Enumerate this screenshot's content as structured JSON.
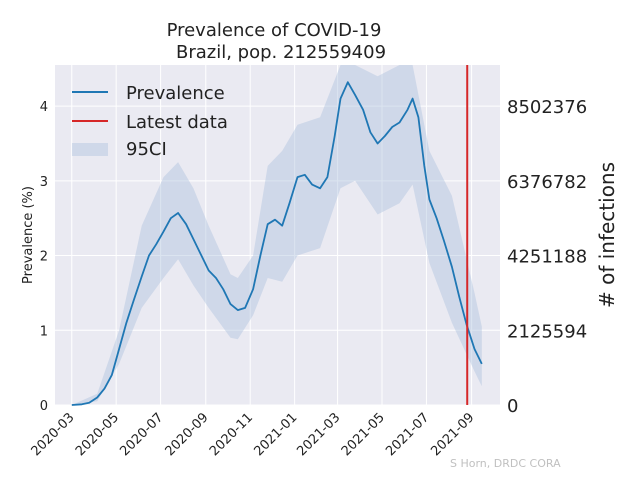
{
  "chart_data": {
    "type": "line",
    "title_line1": "Prevalence of COVID-19",
    "title_line2": "Brazil, pop. 212559409",
    "ylabel": "Prevalence (%)",
    "ylabel_right": "# of infections",
    "ylim": [
      0,
      4.55
    ],
    "yticks": [
      "0",
      "1",
      "2",
      "3",
      "4"
    ],
    "yticks_right": [
      "0",
      "2125594",
      "4251188",
      "6376782",
      "8502376"
    ],
    "xticks": [
      "2020-03",
      "2020-05",
      "2020-07",
      "2020-09",
      "2020-11",
      "2021-01",
      "2021-03",
      "2021-05",
      "2021-07",
      "2021-09"
    ],
    "legend": [
      "Prevalence",
      "Latest data",
      "95CI"
    ],
    "legend_position": "top-left",
    "grid": true,
    "latest_data_date": "2021-08-26",
    "credit": "S Horn, DRDC CORA",
    "colors": {
      "prevalence": "#1f77b4",
      "latest": "#d62728",
      "ci": "#b0c4de",
      "background": "#eaeaf2",
      "grid": "#ffffff"
    },
    "series": [
      {
        "name": "Prevalence",
        "points": [
          [
            "2020-03-01",
            0.0
          ],
          [
            "2020-03-15",
            0.01
          ],
          [
            "2020-03-25",
            0.03
          ],
          [
            "2020-04-05",
            0.1
          ],
          [
            "2020-04-15",
            0.22
          ],
          [
            "2020-04-25",
            0.4
          ],
          [
            "2020-05-05",
            0.75
          ],
          [
            "2020-05-15",
            1.1
          ],
          [
            "2020-05-25",
            1.4
          ],
          [
            "2020-06-05",
            1.72
          ],
          [
            "2020-06-15",
            2.0
          ],
          [
            "2020-06-25",
            2.15
          ],
          [
            "2020-07-05",
            2.32
          ],
          [
            "2020-07-15",
            2.5
          ],
          [
            "2020-07-25",
            2.57
          ],
          [
            "2020-08-05",
            2.42
          ],
          [
            "2020-08-15",
            2.22
          ],
          [
            "2020-08-25",
            2.02
          ],
          [
            "2020-09-05",
            1.8
          ],
          [
            "2020-09-15",
            1.7
          ],
          [
            "2020-09-25",
            1.55
          ],
          [
            "2020-10-05",
            1.35
          ],
          [
            "2020-10-15",
            1.27
          ],
          [
            "2020-10-25",
            1.3
          ],
          [
            "2020-11-05",
            1.55
          ],
          [
            "2020-11-15",
            2.0
          ],
          [
            "2020-11-25",
            2.42
          ],
          [
            "2020-12-05",
            2.48
          ],
          [
            "2020-12-15",
            2.4
          ],
          [
            "2020-12-25",
            2.7
          ],
          [
            "2021-01-05",
            3.05
          ],
          [
            "2021-01-15",
            3.08
          ],
          [
            "2021-01-25",
            2.95
          ],
          [
            "2021-02-05",
            2.9
          ],
          [
            "2021-02-15",
            3.05
          ],
          [
            "2021-02-25",
            3.6
          ],
          [
            "2021-03-05",
            4.1
          ],
          [
            "2021-03-15",
            4.32
          ],
          [
            "2021-03-25",
            4.15
          ],
          [
            "2021-04-05",
            3.95
          ],
          [
            "2021-04-15",
            3.65
          ],
          [
            "2021-04-25",
            3.5
          ],
          [
            "2021-05-05",
            3.6
          ],
          [
            "2021-05-15",
            3.72
          ],
          [
            "2021-05-25",
            3.78
          ],
          [
            "2021-06-05",
            3.95
          ],
          [
            "2021-06-12",
            4.1
          ],
          [
            "2021-06-20",
            3.85
          ],
          [
            "2021-06-28",
            3.2
          ],
          [
            "2021-07-05",
            2.75
          ],
          [
            "2021-07-15",
            2.5
          ],
          [
            "2021-07-25",
            2.2
          ],
          [
            "2021-08-05",
            1.85
          ],
          [
            "2021-08-15",
            1.45
          ],
          [
            "2021-08-25",
            1.08
          ],
          [
            "2021-09-05",
            0.75
          ],
          [
            "2021-09-15",
            0.55
          ]
        ]
      },
      {
        "name": "95CI",
        "points": [
          [
            "2020-03-01",
            0.0,
            0.0
          ],
          [
            "2020-04-05",
            0.05,
            0.15
          ],
          [
            "2020-05-05",
            0.55,
            1.0
          ],
          [
            "2020-06-05",
            1.3,
            2.4
          ],
          [
            "2020-07-05",
            1.7,
            3.05
          ],
          [
            "2020-07-25",
            1.95,
            3.25
          ],
          [
            "2020-08-15",
            1.6,
            2.9
          ],
          [
            "2020-09-05",
            1.3,
            2.4
          ],
          [
            "2020-10-05",
            0.9,
            1.75
          ],
          [
            "2020-10-15",
            0.88,
            1.7
          ],
          [
            "2020-11-05",
            1.2,
            2.0
          ],
          [
            "2020-11-25",
            1.7,
            3.2
          ],
          [
            "2020-12-15",
            1.65,
            3.4
          ],
          [
            "2021-01-05",
            2.0,
            3.75
          ],
          [
            "2021-02-05",
            2.1,
            3.85
          ],
          [
            "2021-03-05",
            2.9,
            4.6
          ],
          [
            "2021-03-25",
            3.0,
            4.6
          ],
          [
            "2021-04-25",
            2.55,
            4.4
          ],
          [
            "2021-05-25",
            2.7,
            4.6
          ],
          [
            "2021-06-12",
            2.95,
            4.6
          ],
          [
            "2021-07-05",
            1.9,
            3.4
          ],
          [
            "2021-08-05",
            1.1,
            2.8
          ],
          [
            "2021-09-05",
            0.45,
            1.5
          ],
          [
            "2021-09-15",
            0.25,
            1.05
          ]
        ]
      }
    ]
  }
}
